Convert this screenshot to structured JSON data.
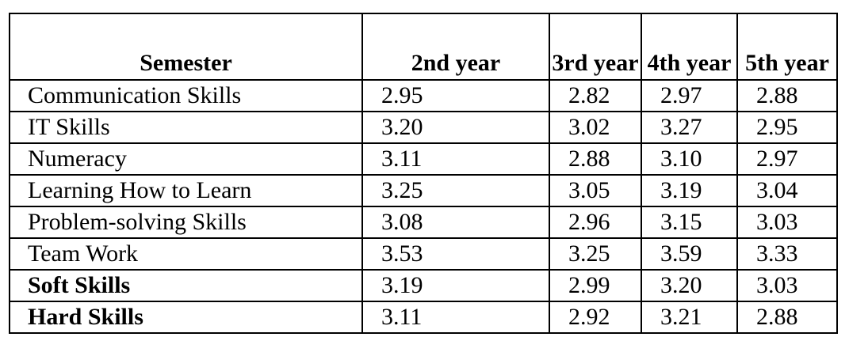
{
  "table": {
    "headers": [
      "Semester",
      "2nd year",
      "3rd year",
      "4th year",
      "5th year"
    ],
    "rows": [
      {
        "label": "Communication Skills",
        "values": [
          "2.95",
          "2.82",
          "2.97",
          "2.88"
        ],
        "bold": false
      },
      {
        "label": "IT Skills",
        "values": [
          "3.20",
          "3.02",
          "3.27",
          "2.95"
        ],
        "bold": false
      },
      {
        "label": "Numeracy",
        "values": [
          "3.11",
          "2.88",
          "3.10",
          "2.97"
        ],
        "bold": false
      },
      {
        "label": "Learning How to Learn",
        "values": [
          "3.25",
          "3.05",
          "3.19",
          "3.04"
        ],
        "bold": false
      },
      {
        "label": "Problem-solving Skills",
        "values": [
          "3.08",
          "2.96",
          "3.15",
          "3.03"
        ],
        "bold": false
      },
      {
        "label": "Team Work",
        "values": [
          "3.53",
          "3.25",
          "3.59",
          "3.33"
        ],
        "bold": false
      },
      {
        "label": "Soft Skills",
        "values": [
          "3.19",
          "2.99",
          "3.20",
          "3.03"
        ],
        "bold": true
      },
      {
        "label": "Hard Skills",
        "values": [
          "3.11",
          "2.92",
          "3.21",
          "2.88"
        ],
        "bold": true
      }
    ]
  }
}
